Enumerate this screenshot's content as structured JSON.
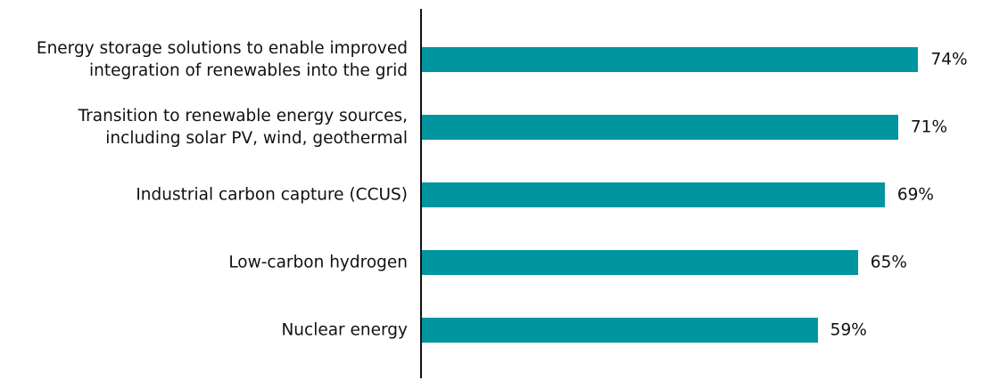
{
  "chart_data": {
    "type": "bar",
    "orientation": "horizontal",
    "categories": [
      "Energy storage solutions to enable improved integration of renewables into the grid",
      "Transition to renewable energy sources, including solar PV, wind, geothermal",
      "Industrial carbon capture (CCUS)",
      "Low-carbon hydrogen",
      "Nuclear energy"
    ],
    "values": [
      74,
      71,
      69,
      65,
      59
    ],
    "value_labels": [
      "74%",
      "71%",
      "69%",
      "65%",
      "59%"
    ],
    "color": "#00959f"
  }
}
